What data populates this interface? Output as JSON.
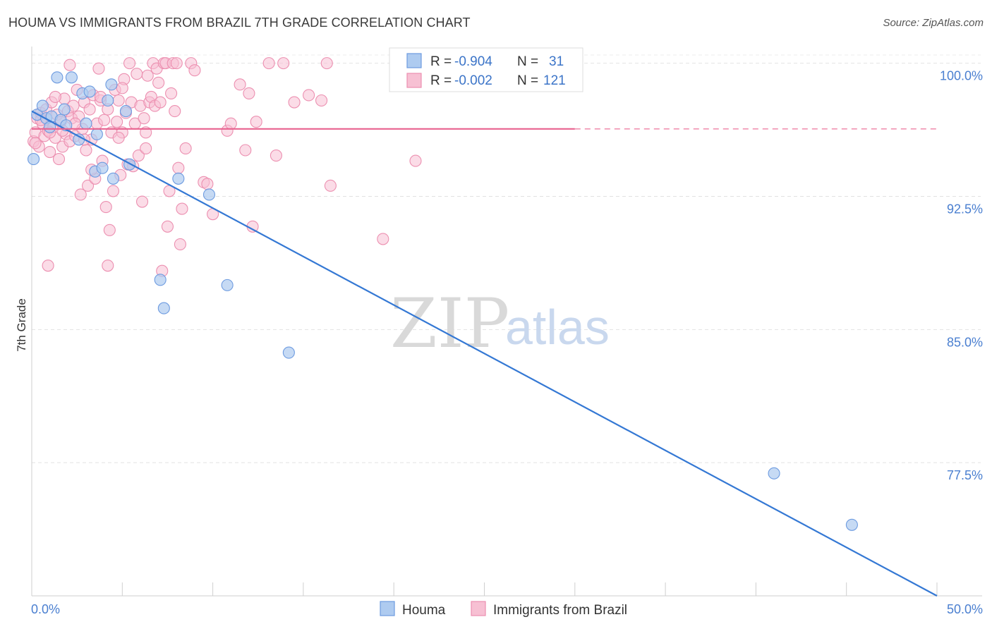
{
  "title": "HOUMA VS IMMIGRANTS FROM BRAZIL 7TH GRADE CORRELATION CHART",
  "source": "Source: ZipAtlas.com",
  "watermark": {
    "zip": "ZIP",
    "atlas": "atlas"
  },
  "legend_box": {
    "r_label": "R = ",
    "n_label": "N = ",
    "rows": [
      {
        "r": "-0.904",
        "n": "31"
      },
      {
        "r": "-0.002",
        "n": "121"
      }
    ]
  },
  "bottom_legend": [
    "Houma",
    "Immigrants from Brazil"
  ],
  "chart_data": {
    "type": "scatter",
    "title": "HOUMA VS IMMIGRANTS FROM BRAZIL 7TH GRADE CORRELATION CHART",
    "xlabel": "",
    "ylabel": "7th Grade",
    "xlim": [
      0,
      50
    ],
    "ylim": [
      70,
      100.7
    ],
    "x_tick_labels": [
      "0.0%",
      "50.0%"
    ],
    "y_ticks": [
      77.5,
      85.0,
      92.5,
      100.0
    ],
    "y_tick_labels": [
      "77.5%",
      "85.0%",
      "92.5%",
      "100.0%"
    ],
    "grid": true,
    "colors": {
      "houma_fill": "#aecbf0",
      "houma_stroke": "#6d9be0",
      "houma_line": "#3478d4",
      "brazil_fill": "#f7c0d3",
      "brazil_stroke": "#ec8fb0",
      "brazil_line": "#e8628f"
    },
    "series": [
      {
        "name": "Houma",
        "R": -0.904,
        "N": 31,
        "trend": {
          "x": [
            0,
            50
          ],
          "y": [
            97.3,
            70.0
          ]
        },
        "points": [
          [
            0.1,
            94.6
          ],
          [
            0.3,
            97.1
          ],
          [
            0.6,
            97.6
          ],
          [
            0.8,
            96.9
          ],
          [
            1.0,
            96.4
          ],
          [
            1.1,
            97.0
          ],
          [
            1.4,
            99.2
          ],
          [
            1.6,
            96.8
          ],
          [
            1.8,
            97.4
          ],
          [
            1.9,
            96.5
          ],
          [
            2.2,
            99.2
          ],
          [
            2.6,
            95.7
          ],
          [
            2.8,
            98.3
          ],
          [
            3.0,
            96.6
          ],
          [
            3.2,
            98.4
          ],
          [
            3.5,
            93.9
          ],
          [
            3.6,
            96.0
          ],
          [
            3.9,
            94.1
          ],
          [
            4.2,
            97.9
          ],
          [
            4.4,
            98.8
          ],
          [
            4.5,
            93.5
          ],
          [
            5.2,
            97.3
          ],
          [
            5.4,
            94.3
          ],
          [
            7.1,
            87.8
          ],
          [
            7.3,
            86.2
          ],
          [
            8.1,
            93.5
          ],
          [
            9.8,
            92.6
          ],
          [
            10.8,
            87.5
          ],
          [
            14.2,
            83.7
          ],
          [
            41.0,
            76.9
          ],
          [
            45.3,
            74.0
          ]
        ]
      },
      {
        "name": "Immigrants from Brazil",
        "R": -0.002,
        "N": 121,
        "trend": {
          "x": [
            0,
            30
          ],
          "y": [
            96.3,
            96.3
          ]
        },
        "trend_dashed": {
          "x": [
            30,
            50
          ],
          "y": [
            96.3,
            96.3
          ]
        },
        "points": [
          [
            0.1,
            95.6
          ],
          [
            0.2,
            96.1
          ],
          [
            0.3,
            96.9
          ],
          [
            0.4,
            95.3
          ],
          [
            0.5,
            97.2
          ],
          [
            0.6,
            96.6
          ],
          [
            0.7,
            95.9
          ],
          [
            0.8,
            97.4
          ],
          [
            0.9,
            96.2
          ],
          [
            1.0,
            95.0
          ],
          [
            1.1,
            97.8
          ],
          [
            1.2,
            96.4
          ],
          [
            1.3,
            95.8
          ],
          [
            1.4,
            97.1
          ],
          [
            1.5,
            94.6
          ],
          [
            1.6,
            96.7
          ],
          [
            1.7,
            95.3
          ],
          [
            1.8,
            98.0
          ],
          [
            1.9,
            96.0
          ],
          [
            2.0,
            97.3
          ],
          [
            2.1,
            95.6
          ],
          [
            2.2,
            96.9
          ],
          [
            2.3,
            97.6
          ],
          [
            2.4,
            95.9
          ],
          [
            2.5,
            98.5
          ],
          [
            2.6,
            97.0
          ],
          [
            2.7,
            92.6
          ],
          [
            2.8,
            96.3
          ],
          [
            2.9,
            97.8
          ],
          [
            3.0,
            95.1
          ],
          [
            3.1,
            93.1
          ],
          [
            3.2,
            97.4
          ],
          [
            3.3,
            95.7
          ],
          [
            3.4,
            98.2
          ],
          [
            3.5,
            93.5
          ],
          [
            3.6,
            96.6
          ],
          [
            3.7,
            99.7
          ],
          [
            3.8,
            97.9
          ],
          [
            3.9,
            94.5
          ],
          [
            4.0,
            96.8
          ],
          [
            4.1,
            91.9
          ],
          [
            4.2,
            97.4
          ],
          [
            4.3,
            90.6
          ],
          [
            4.4,
            96.1
          ],
          [
            4.5,
            92.8
          ],
          [
            4.6,
            98.5
          ],
          [
            4.7,
            96.7
          ],
          [
            4.8,
            97.9
          ],
          [
            4.9,
            93.7
          ],
          [
            5.0,
            96.1
          ],
          [
            5.1,
            99.1
          ],
          [
            5.2,
            97.2
          ],
          [
            5.3,
            94.3
          ],
          [
            5.4,
            100.0
          ],
          [
            5.5,
            97.8
          ],
          [
            5.6,
            94.2
          ],
          [
            5.7,
            96.6
          ],
          [
            5.8,
            99.4
          ],
          [
            5.9,
            94.8
          ],
          [
            6.0,
            97.6
          ],
          [
            6.1,
            92.2
          ],
          [
            6.2,
            96.9
          ],
          [
            6.3,
            96.1
          ],
          [
            6.4,
            99.3
          ],
          [
            6.5,
            97.8
          ],
          [
            6.6,
            98.1
          ],
          [
            6.7,
            100.0
          ],
          [
            6.8,
            97.6
          ],
          [
            6.9,
            99.7
          ],
          [
            7.0,
            98.9
          ],
          [
            7.1,
            97.8
          ],
          [
            7.2,
            88.3
          ],
          [
            7.3,
            100.0
          ],
          [
            7.4,
            100.0
          ],
          [
            7.5,
            90.8
          ],
          [
            7.6,
            92.8
          ],
          [
            7.7,
            98.3
          ],
          [
            7.8,
            100.0
          ],
          [
            8.0,
            100.0
          ],
          [
            8.1,
            94.1
          ],
          [
            8.2,
            89.8
          ],
          [
            8.3,
            91.8
          ],
          [
            8.5,
            95.2
          ],
          [
            9.5,
            93.3
          ],
          [
            9.7,
            93.2
          ],
          [
            10.0,
            91.5
          ],
          [
            10.8,
            96.2
          ],
          [
            11.0,
            96.6
          ],
          [
            11.5,
            98.8
          ],
          [
            11.8,
            95.1
          ],
          [
            12.0,
            98.3
          ],
          [
            12.2,
            90.8
          ],
          [
            12.4,
            96.7
          ],
          [
            13.1,
            100.0
          ],
          [
            13.5,
            94.8
          ],
          [
            13.9,
            100.0
          ],
          [
            14.5,
            97.8
          ],
          [
            15.3,
            98.2
          ],
          [
            16.0,
            97.9
          ],
          [
            16.3,
            100.0
          ],
          [
            16.5,
            93.1
          ],
          [
            19.4,
            90.1
          ],
          [
            21.2,
            94.5
          ],
          [
            0.9,
            88.6
          ],
          [
            4.2,
            88.6
          ],
          [
            2.9,
            95.7
          ],
          [
            1.7,
            96.2
          ],
          [
            0.5,
            96.8
          ],
          [
            3.3,
            94.0
          ],
          [
            6.3,
            95.2
          ],
          [
            1.3,
            98.1
          ],
          [
            2.1,
            99.9
          ],
          [
            4.8,
            95.8
          ],
          [
            7.9,
            97.3
          ],
          [
            5.0,
            98.6
          ],
          [
            1.0,
            96.1
          ],
          [
            0.2,
            95.5
          ],
          [
            2.4,
            96.6
          ],
          [
            3.8,
            98.1
          ],
          [
            8.8,
            100.0
          ],
          [
            9.0,
            99.6
          ]
        ]
      }
    ]
  }
}
